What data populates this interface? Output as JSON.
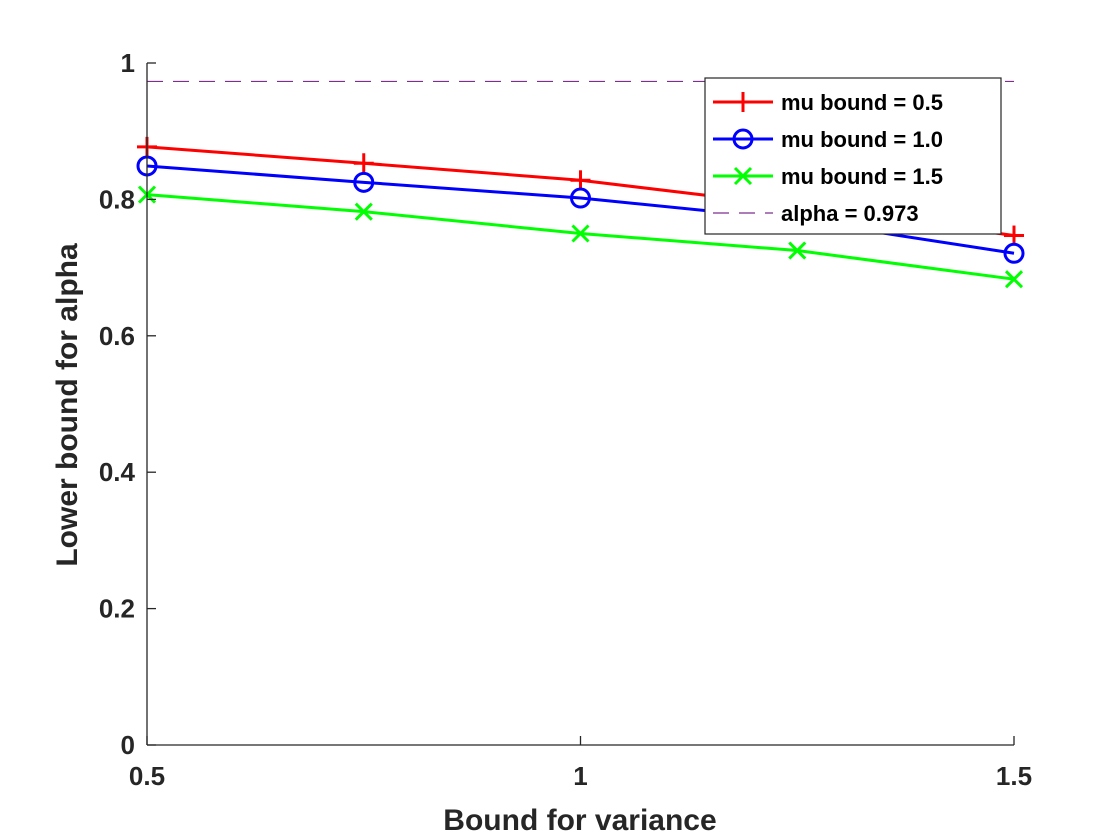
{
  "chart_data": {
    "type": "line",
    "xlabel": "Bound for variance",
    "ylabel": "Lower bound for alpha",
    "xlim": [
      0.5,
      1.5
    ],
    "ylim": [
      0,
      1
    ],
    "xticks": [
      "0.5",
      "1",
      "1.5"
    ],
    "yticks": [
      "0",
      "0.2",
      "0.4",
      "0.6",
      "0.8",
      "1"
    ],
    "grid": false,
    "legend_position": "top-right",
    "x": [
      0.5,
      0.75,
      1.0,
      1.25,
      1.5
    ],
    "series": [
      {
        "name": "mu bound = 0.5",
        "values": [
          0.877,
          0.853,
          0.828,
          0.79,
          0.747
        ],
        "color": "#ff0000",
        "marker": "plus"
      },
      {
        "name": "mu bound = 1.0",
        "values": [
          0.849,
          0.825,
          0.802,
          0.77,
          0.721
        ],
        "color": "#0000ff",
        "marker": "circle"
      },
      {
        "name": "mu bound = 1.5",
        "values": [
          0.807,
          0.782,
          0.75,
          0.725,
          0.683
        ],
        "color": "#00ff00",
        "marker": "x"
      }
    ],
    "reference_line": {
      "name": "alpha = 0.973",
      "value": 0.973,
      "color": "#7e2f8e",
      "style": "dashed"
    }
  }
}
